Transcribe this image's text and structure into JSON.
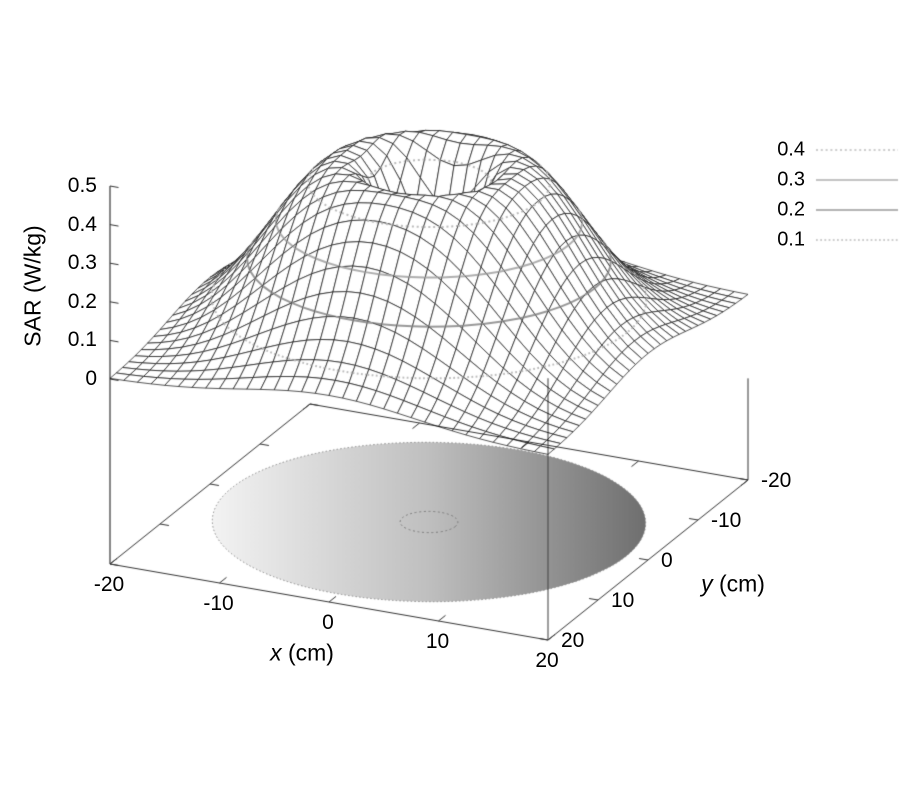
{
  "chart_data": {
    "type": "3d-surface",
    "title": "",
    "xlabel_var": "x",
    "xlabel_unit": " (cm)",
    "ylabel_var": "y",
    "ylabel_unit": " (cm)",
    "zlabel": "SAR (W/kg)",
    "xlim": [
      -20,
      20
    ],
    "ylim": [
      -20,
      20
    ],
    "zlim": [
      0,
      0.5
    ],
    "x_ticks": [
      "-20",
      "-10",
      "0",
      "10",
      "20"
    ],
    "y_ticks": [
      "20",
      "10",
      "0",
      "-10",
      "-20"
    ],
    "z_ticks": [
      "0",
      "0.1",
      "0.2",
      "0.3",
      "0.4",
      "0.5"
    ],
    "grid": false,
    "legend_position": "top-right",
    "legend_entries": [
      {
        "label": "0.4",
        "level": 0.4,
        "color": "#bcbcbc",
        "dash": [
          2,
          2.8
        ]
      },
      {
        "label": "0.3",
        "level": 0.3,
        "color": "#aeaeae",
        "dash": []
      },
      {
        "label": "0.2",
        "level": 0.2,
        "color": "#989898",
        "dash": []
      },
      {
        "label": "0.1",
        "level": 0.1,
        "color": "#bcbcbc",
        "dash": [
          1.8,
          2.4
        ]
      }
    ],
    "surface": {
      "style": "hidden-line wireframe",
      "grid_points": 33,
      "model": {
        "amp": 0.45,
        "ring_r": 7,
        "ring_w": 9,
        "dip_depth": 0.97,
        "dip_w": 3.2
      },
      "peak_sar": 0.45,
      "center_dip_sar": 0.007
    },
    "radial_profile": {
      "r_cm": [
        0,
        2,
        4,
        6,
        8,
        10,
        12,
        14,
        16,
        18,
        20
      ],
      "sar_w_per_kg": [
        0.007,
        0.114,
        0.321,
        0.432,
        0.444,
        0.403,
        0.33,
        0.246,
        0.166,
        0.101,
        0.056
      ]
    },
    "base_disk": {
      "radius_cm": 18,
      "inner_contour_radius_cm": 2.4,
      "gradient": [
        "#f3f3f3",
        "#bfbfbf",
        "#6f6f6f"
      ],
      "edge_style": "dotted"
    },
    "colors": {
      "mesh": "#1c1c1c",
      "border": "#333333",
      "front_vertical": "#4a4a4a",
      "background": "#ffffff"
    }
  }
}
